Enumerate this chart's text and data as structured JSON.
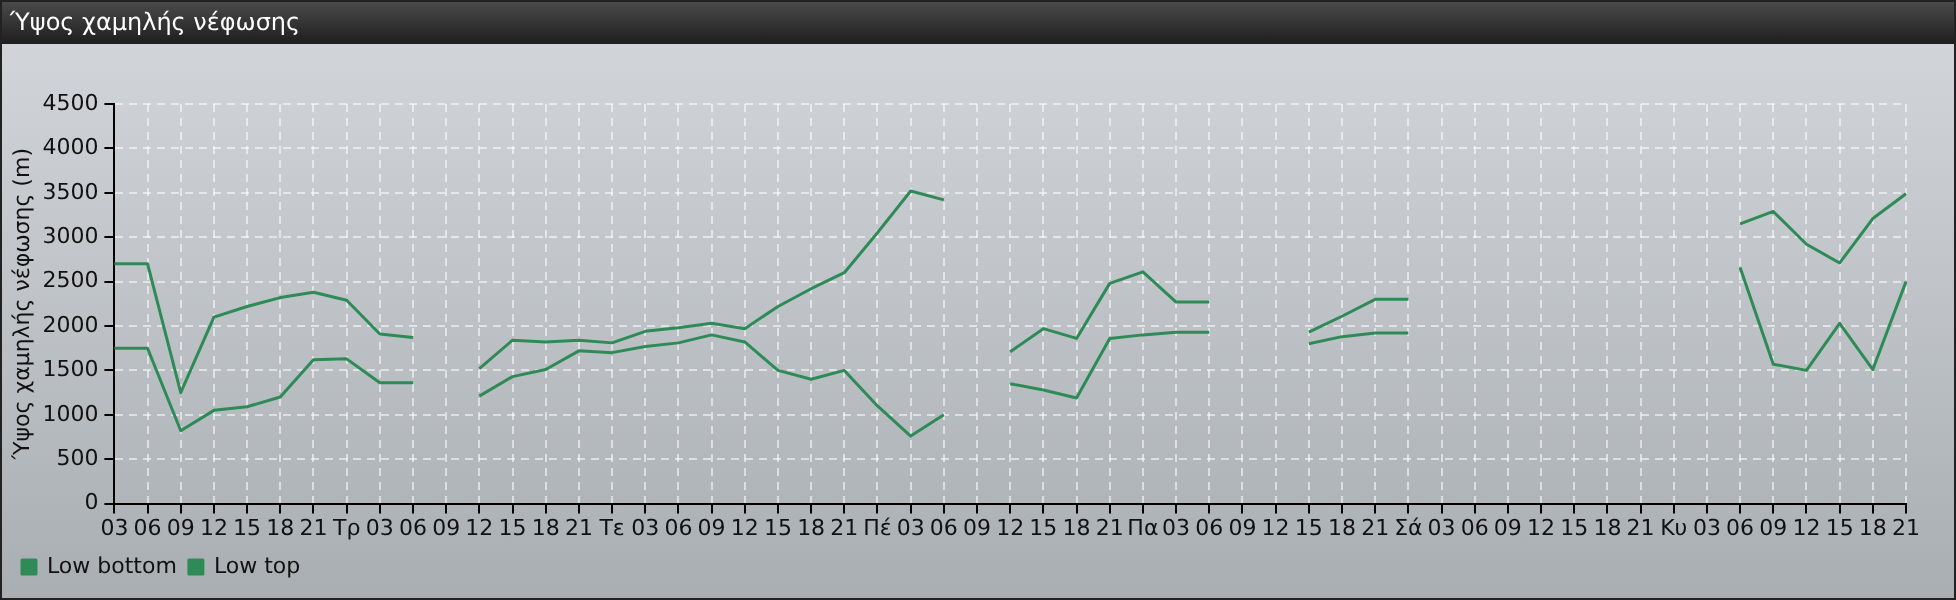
{
  "chart_data": {
    "type": "line",
    "title": "Ύψος χαμηλής νέφωσης",
    "ylabel": "Ύψος χαμηλής νέφωσης (m)",
    "categories": [
      "03",
      "06",
      "09",
      "12",
      "15",
      "18",
      "21",
      "Τρ",
      "03",
      "06",
      "09",
      "12",
      "15",
      "18",
      "21",
      "Τε",
      "03",
      "06",
      "09",
      "12",
      "15",
      "18",
      "21",
      "Πέ",
      "03",
      "06",
      "09",
      "12",
      "15",
      "18",
      "21",
      "Πα",
      "03",
      "06",
      "09",
      "12",
      "15",
      "18",
      "21",
      "Σά",
      "03",
      "06",
      "09",
      "12",
      "15",
      "18",
      "21",
      "Κυ",
      "03",
      "06",
      "09",
      "12",
      "15",
      "18",
      "21"
    ],
    "series": [
      {
        "name": "Low bottom",
        "color": "#2e8b57",
        "values": [
          1750,
          1750,
          820,
          1050,
          1090,
          1200,
          1620,
          1630,
          1360,
          1360,
          null,
          1210,
          1430,
          1510,
          1720,
          1700,
          1770,
          1810,
          1900,
          1820,
          1500,
          1400,
          1500,
          1100,
          760,
          1000,
          null,
          1350,
          1280,
          1190,
          1860,
          1900,
          1930,
          1930,
          null,
          null,
          1800,
          1880,
          1920,
          1920,
          null,
          null,
          null,
          null,
          null,
          null,
          null,
          null,
          null,
          2660,
          1570,
          1500,
          2030,
          1510,
          2500
        ]
      },
      {
        "name": "Low top",
        "color": "#2e8b57",
        "values": [
          2700,
          2700,
          1250,
          2100,
          2220,
          2320,
          2380,
          2290,
          1910,
          1870,
          null,
          1520,
          1840,
          1820,
          1840,
          1810,
          1940,
          1980,
          2030,
          1970,
          2220,
          2420,
          2600,
          3050,
          3520,
          3420,
          null,
          1710,
          1970,
          1860,
          2480,
          2610,
          2270,
          2270,
          null,
          null,
          1930,
          2110,
          2300,
          2300,
          null,
          null,
          null,
          null,
          null,
          null,
          null,
          null,
          null,
          3150,
          3290,
          2920,
          2710,
          3210,
          3490
        ]
      }
    ],
    "ylim": [
      0,
      4500
    ],
    "yticks": [
      0,
      500,
      1000,
      1500,
      2000,
      2500,
      3000,
      3500,
      4000,
      4500
    ],
    "grid": true,
    "legend": "bottom left",
    "marker": "none",
    "line_style": "solid"
  }
}
